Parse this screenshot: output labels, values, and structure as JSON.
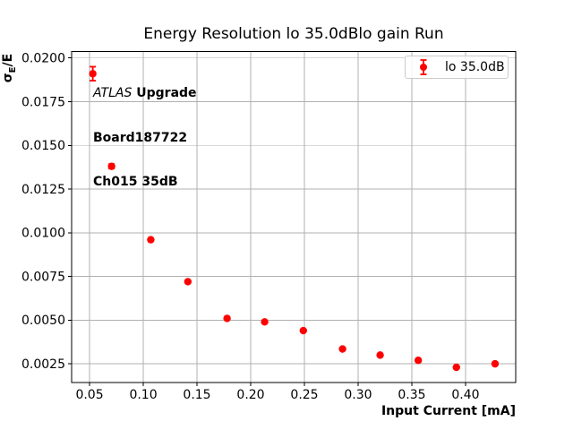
{
  "figure": {
    "title": "Energy Resolution lo 35.0dBlo gain Run",
    "xlabel": "Input Current [mA]",
    "ylabel": {
      "sigma": "σ",
      "sub": "E",
      "rest": "/E"
    },
    "annotation": {
      "experiment": "ATLAS",
      "tag": " Upgrade",
      "board": "Board187722",
      "channel": "Ch015 35dB"
    },
    "legend": {
      "label": "lo 35.0dB"
    }
  },
  "chart_data": {
    "type": "scatter",
    "title": "Energy Resolution lo 35.0dBlo gain Run",
    "xlabel": "Input Current [mA]",
    "ylabel": "σE/E",
    "grid": true,
    "legend_position": "upper right",
    "xlim": [
      0.0333,
      0.4467
    ],
    "ylim": [
      0.00143,
      0.02037
    ],
    "xticks": [
      {
        "v": 0.05,
        "label": "0.05"
      },
      {
        "v": 0.1,
        "label": "0.10"
      },
      {
        "v": 0.15,
        "label": "0.15"
      },
      {
        "v": 0.2,
        "label": "0.20"
      },
      {
        "v": 0.25,
        "label": "0.25"
      },
      {
        "v": 0.3,
        "label": "0.30"
      },
      {
        "v": 0.35,
        "label": "0.35"
      },
      {
        "v": 0.4,
        "label": "0.40"
      }
    ],
    "yticks": [
      {
        "v": 0.0025,
        "label": "0.0025"
      },
      {
        "v": 0.005,
        "label": "0.0050"
      },
      {
        "v": 0.0075,
        "label": "0.0075"
      },
      {
        "v": 0.01,
        "label": "0.0100"
      },
      {
        "v": 0.0125,
        "label": "0.0125"
      },
      {
        "v": 0.015,
        "label": "0.0150"
      },
      {
        "v": 0.0175,
        "label": "0.0175"
      },
      {
        "v": 0.02,
        "label": "0.0200"
      }
    ],
    "series": [
      {
        "name": "lo 35.0dB",
        "color": "#ff0000",
        "marker": "circle-with-errorbar",
        "points": [
          {
            "x": 0.053,
            "y": 0.0191,
            "yerr": 0.0004
          },
          {
            "x": 0.0705,
            "y": 0.0138,
            "yerr": 0.00013
          },
          {
            "x": 0.107,
            "y": 0.0096,
            "yerr": 5e-05
          },
          {
            "x": 0.1415,
            "y": 0.0072,
            "yerr": 5e-05
          },
          {
            "x": 0.178,
            "y": 0.0051,
            "yerr": 4e-05
          },
          {
            "x": 0.213,
            "y": 0.0049,
            "yerr": 4e-05
          },
          {
            "x": 0.249,
            "y": 0.0044,
            "yerr": 4e-05
          },
          {
            "x": 0.2855,
            "y": 0.00335,
            "yerr": 3e-05
          },
          {
            "x": 0.3205,
            "y": 0.003,
            "yerr": 3e-05
          },
          {
            "x": 0.356,
            "y": 0.0027,
            "yerr": 3e-05
          },
          {
            "x": 0.3915,
            "y": 0.0023,
            "yerr": 3e-05
          },
          {
            "x": 0.4275,
            "y": 0.0025,
            "yerr": 3e-05
          }
        ]
      }
    ],
    "colors": {
      "marker": "#ff0000",
      "grid": "#b0b0b0",
      "axis": "#000000",
      "legend_border": "#cccccc",
      "background": "#ffffff"
    }
  }
}
